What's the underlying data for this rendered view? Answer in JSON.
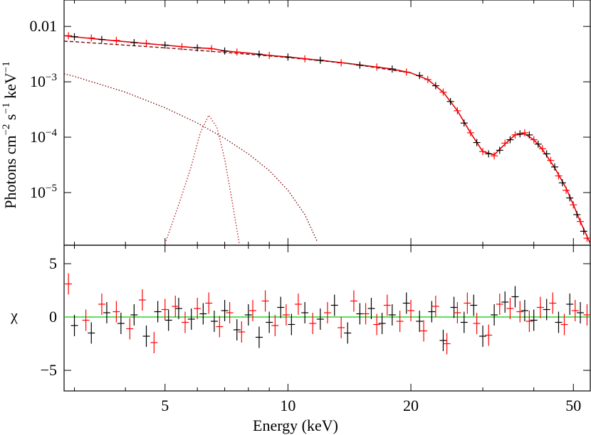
{
  "chart_data": [
    {
      "type": "line",
      "ylabel": [
        "Photons cm",
        "−2",
        " s",
        "−1",
        " keV",
        "−1"
      ],
      "log_x": true,
      "log_y": true,
      "xlim": [
        2.83,
        55
      ],
      "ylim": [
        1.12e-06,
        0.03
      ],
      "yticks": [
        0.01,
        {
          "value": 0.001,
          "label": "10",
          "exponent": "−3"
        },
        {
          "value": 0.0001,
          "label": "10",
          "exponent": "−4"
        },
        {
          "value": 1e-05,
          "label": "10",
          "exponent": "−5"
        }
      ],
      "series": [
        {
          "style": "solid",
          "color": "#e8000b",
          "x": [
            2.83,
            3,
            3.5,
            4,
            4.5,
            5,
            5.5,
            6,
            6.5,
            7,
            8,
            9,
            10,
            12,
            14,
            16,
            18,
            20,
            22,
            24,
            26,
            28,
            30,
            32,
            34,
            36,
            38,
            40,
            42,
            45,
            48,
            50,
            52,
            55
          ],
          "values": [
            0.0068,
            0.0065,
            0.0058,
            0.0053,
            0.0049,
            0.0046,
            0.0043,
            0.0041,
            0.004,
            0.0036,
            0.0033,
            0.003,
            0.0028,
            0.00245,
            0.00215,
            0.0019,
            0.0017,
            0.00145,
            0.0011,
            0.00065,
            0.0003,
            0.00012,
            5.5e-05,
            4.8e-05,
            7.5e-05,
            0.00011,
            0.000115,
            9e-05,
            6e-05,
            2.8e-05,
            1.2e-05,
            6e-06,
            3e-06,
            1.2e-06
          ]
        },
        {
          "style": "dashed",
          "color": "#7a1010",
          "x": [
            2.83,
            3,
            4,
            5,
            6,
            7,
            8,
            10,
            14,
            20
          ],
          "values": [
            0.0054,
            0.0053,
            0.0046,
            0.0041,
            0.0037,
            0.0034,
            0.00315,
            0.00275,
            0.00215,
            0.00145
          ]
        },
        {
          "style": "dotted",
          "color": "#7a1010",
          "x": [
            2.83,
            3,
            4,
            5,
            6,
            7,
            8,
            9,
            10,
            11,
            11.8
          ],
          "values": [
            0.0014,
            0.00125,
            0.00065,
            0.00034,
            0.00018,
            9.5e-05,
            5e-05,
            2.5e-05,
            1.1e-05,
            4e-06,
            1.3e-06
          ]
        },
        {
          "style": "dotted",
          "color": "#c0282d",
          "x": [
            5.0,
            5.4,
            5.8,
            6.1,
            6.4,
            6.7,
            7.0,
            7.3,
            7.6
          ],
          "values": [
            1.2e-06,
            6e-06,
            3e-05,
            0.00012,
            0.00025,
            0.00015,
            4e-05,
            7e-06,
            1.2e-06
          ]
        },
        {
          "style": "cross",
          "color": "#000000",
          "x": [
            3,
            3.5,
            4.2,
            5,
            6,
            7,
            8.5,
            10,
            12,
            15,
            18,
            21,
            23,
            25,
            27,
            29,
            31,
            33,
            35,
            37,
            39,
            41,
            43,
            45,
            47,
            49,
            51,
            53
          ],
          "values": [
            0.0065,
            0.0058,
            0.0051,
            0.0046,
            0.0041,
            0.0036,
            0.00315,
            0.0028,
            0.00245,
            0.002,
            0.0017,
            0.0013,
            0.00085,
            0.00044,
            0.00018,
            8e-05,
            5e-05,
            5.8e-05,
            9e-05,
            0.000115,
            0.00011,
            7.5e-05,
            5e-05,
            2.9e-05,
            1.5e-05,
            8e-06,
            4e-06,
            2e-06
          ]
        },
        {
          "style": "cross",
          "color": "#ff0000",
          "x": [
            2.9,
            3.3,
            3.8,
            4.5,
            5.5,
            6.5,
            7.5,
            9,
            11,
            13.5,
            16.5,
            19.5,
            22,
            24,
            26,
            28,
            30,
            32,
            34,
            36,
            38,
            40,
            42,
            44,
            46,
            48,
            50,
            52,
            54
          ],
          "values": [
            0.0068,
            0.0062,
            0.0056,
            0.00495,
            0.0043,
            0.00395,
            0.00345,
            0.003,
            0.0026,
            0.0022,
            0.00185,
            0.0015,
            0.0011,
            0.00065,
            0.0003,
            0.00012,
            5.5e-05,
            4.6e-05,
            7.8e-05,
            0.00011,
            0.00012,
            9e-05,
            6.2e-05,
            3.8e-05,
            2e-05,
            1.1e-05,
            6e-06,
            3e-06,
            1.5e-06
          ]
        }
      ]
    },
    {
      "type": "scatter",
      "ylabel": "χ",
      "xlabel": "Energy (keV)",
      "log_x": true,
      "xlim": [
        2.83,
        55
      ],
      "ylim": [
        -6.93,
        6.73
      ],
      "xticks": [
        5,
        10,
        20,
        50
      ],
      "xminor": [
        3,
        4,
        6,
        7,
        8,
        9,
        30,
        40
      ],
      "yticks": [
        {
          "value": -5,
          "label": "−5"
        },
        0,
        5
      ],
      "reference_line": {
        "value": 0,
        "color": "#00cc00"
      },
      "series": [
        {
          "color": "#000000",
          "error": 1,
          "x": [
            3.0,
            3.3,
            3.6,
            3.9,
            4.2,
            4.5,
            4.8,
            5.1,
            5.4,
            5.8,
            6.2,
            6.6,
            7.0,
            7.5,
            8.0,
            8.5,
            9.0,
            9.6,
            10.2,
            11,
            12,
            13,
            14,
            15,
            16,
            17,
            18,
            19.5,
            21,
            22.5,
            24,
            25.5,
            27,
            28.5,
            30,
            32,
            34,
            36,
            38,
            40,
            43,
            46,
            49,
            52
          ],
          "values": [
            -0.8,
            -1.5,
            0.4,
            -0.6,
            0.2,
            -1.8,
            0.5,
            -0.3,
            0.8,
            -0.2,
            0.3,
            -0.4,
            0.6,
            -1.2,
            0.2,
            -1.9,
            -0.5,
            0.9,
            -0.7,
            0.4,
            -0.2,
            1.1,
            -1.5,
            0.3,
            0.8,
            -0.6,
            0.2,
            1.3,
            -0.4,
            0.5,
            -2.2,
            0.9,
            -0.5,
            1.1,
            -1.8,
            0.2,
            1.4,
            1.9,
            0.6,
            -0.3,
            0.7,
            -0.5,
            1.2,
            0.4
          ]
        },
        {
          "color": "#ff0000",
          "error": 1,
          "x": [
            2.9,
            3.2,
            3.5,
            3.8,
            4.1,
            4.4,
            4.7,
            5.0,
            5.3,
            5.6,
            6.0,
            6.4,
            6.8,
            7.2,
            7.7,
            8.2,
            8.8,
            9.3,
            9.9,
            10.6,
            11.5,
            12.5,
            13.5,
            14.5,
            15.5,
            16.5,
            17.5,
            18.8,
            20,
            21.5,
            23,
            24.5,
            26,
            27.5,
            29,
            31,
            33,
            35,
            37,
            39,
            41.5,
            44.5,
            47.5,
            50.5,
            54
          ],
          "values": [
            3.1,
            -0.3,
            1.2,
            0.5,
            -1.1,
            1.6,
            -2.4,
            0.7,
            1.0,
            -0.5,
            0.8,
            1.3,
            -0.9,
            0.4,
            -1.4,
            0.6,
            1.5,
            -0.8,
            0.2,
            1.2,
            -0.6,
            0.4,
            -1.0,
            1.5,
            0.3,
            -0.7,
            1.1,
            -0.4,
            0.6,
            -1.3,
            1.0,
            -2.5,
            0.4,
            1.3,
            -0.6,
            -1.7,
            1.2,
            0.8,
            0.5,
            -0.4,
            0.9,
            1.3,
            -0.7,
            0.6,
            0.2
          ]
        }
      ]
    }
  ]
}
